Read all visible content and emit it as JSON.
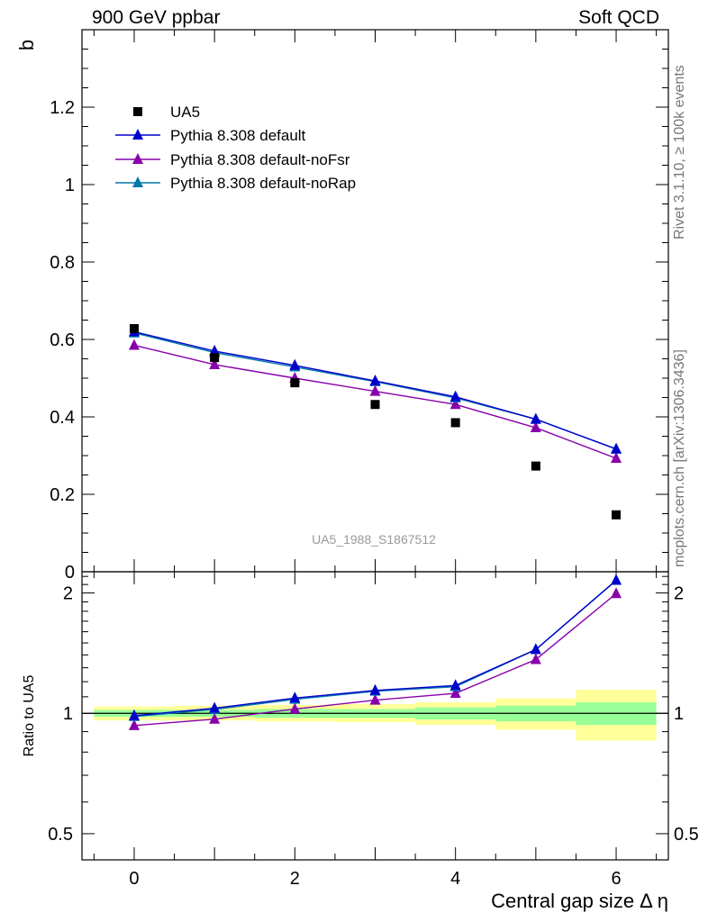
{
  "header": {
    "left": "900 GeV ppbar",
    "right": "Soft QCD"
  },
  "side_labels": {
    "rivet": "Rivet 3.1.10, ≥ 100k events",
    "mcplots": "mcplots.cern.ch [arXiv:1306.3436]"
  },
  "colors": {
    "data": "#000000",
    "default": "#0000cc",
    "noFsr": "#8800aa",
    "noRap": "#0077aa",
    "band_inner": "#99ff99",
    "band_outer": "#ffff99"
  },
  "chart_data": [
    {
      "type": "scatter",
      "title": "",
      "xlabel": "",
      "ylabel": "b",
      "xlim": [
        -0.65,
        6.65
      ],
      "ylim": [
        0,
        1.4
      ],
      "yticks": [
        "0",
        "0.2",
        "0.4",
        "0.6",
        "0.8",
        "1",
        "1.2"
      ],
      "watermark": "UA5_1988_S1867512",
      "legend_position": "top-left",
      "x": [
        0,
        1,
        2,
        3,
        4,
        5,
        6
      ],
      "series": [
        {
          "name": "UA5",
          "marker": "square",
          "values": [
            0.628,
            0.553,
            0.488,
            0.432,
            0.385,
            0.273,
            0.147
          ]
        },
        {
          "name": "Pythia 8.308 default",
          "marker": "triangle",
          "values": [
            0.62,
            0.57,
            0.533,
            0.493,
            0.452,
            0.394,
            0.317
          ]
        },
        {
          "name": "Pythia 8.308 default-noFsr",
          "marker": "triangle",
          "values": [
            0.585,
            0.535,
            0.5,
            0.466,
            0.432,
            0.372,
            0.293
          ]
        },
        {
          "name": "Pythia 8.308 default-noRap",
          "marker": "triangle",
          "values": [
            0.617,
            0.566,
            0.529,
            0.491,
            0.449,
            0.394,
            0.317
          ]
        }
      ]
    },
    {
      "type": "line",
      "title": "",
      "xlabel": "Central gap size Δ η",
      "ylabel": "Ratio to UA5",
      "xlim": [
        -0.65,
        6.65
      ],
      "ylim": [
        0.43,
        2.26
      ],
      "yscale": "log",
      "xticks": [
        "0",
        "2",
        "4",
        "6"
      ],
      "yticks": [
        "0.5",
        "1",
        "2"
      ],
      "x": [
        0,
        1,
        2,
        3,
        4,
        5,
        6
      ],
      "series": [
        {
          "name": "Pythia 8.308 default",
          "values": [
            0.987,
            1.03,
            1.092,
            1.141,
            1.174,
            1.444,
            2.151
          ]
        },
        {
          "name": "Pythia 8.308 default-noFsr",
          "values": [
            0.932,
            0.967,
            1.025,
            1.079,
            1.122,
            1.363,
            1.993
          ]
        },
        {
          "name": "Pythia 8.308 default-noRap",
          "values": [
            0.982,
            1.023,
            1.084,
            1.136,
            1.166,
            1.444,
            2.151
          ]
        }
      ],
      "bands": {
        "inner": [
          [
            0.98,
            1.02
          ],
          [
            0.98,
            1.02
          ],
          [
            0.975,
            1.025
          ],
          [
            0.975,
            1.025
          ],
          [
            0.965,
            1.035
          ],
          [
            0.955,
            1.045
          ],
          [
            0.935,
            1.065
          ]
        ],
        "outer": [
          [
            0.96,
            1.04
          ],
          [
            0.96,
            1.045
          ],
          [
            0.955,
            1.05
          ],
          [
            0.95,
            1.055
          ],
          [
            0.935,
            1.065
          ],
          [
            0.91,
            1.09
          ],
          [
            0.855,
            1.145
          ]
        ]
      }
    }
  ]
}
